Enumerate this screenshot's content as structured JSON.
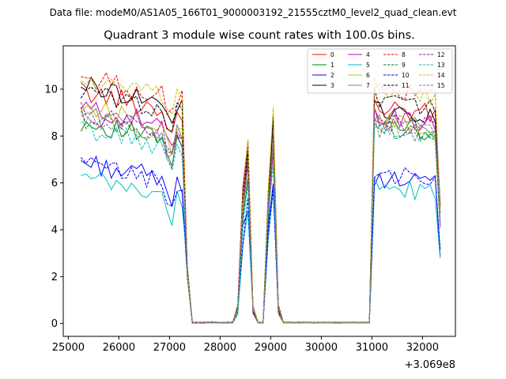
{
  "figure": {
    "suptitle": "Data file: modeM0/AS1A05_166T01_9000003192_21555cztM0_level2_quad_clean.evt",
    "title": "Quadrant 3 module wise count rates with 100.0s bins.",
    "x_offset_label": "+3.069e8"
  },
  "chart_data": {
    "type": "line",
    "title": "Quadrant 3 module wise count rates with 100.0s bins.",
    "xlabel": "",
    "ylabel": "",
    "x_offset": 306900000,
    "xlim": [
      24900,
      32650
    ],
    "ylim": [
      -0.55,
      11.85
    ],
    "xticks": [
      25000,
      26000,
      27000,
      28000,
      29000,
      30000,
      31000,
      32000
    ],
    "xtick_labels": [
      "25000",
      "26000",
      "27000",
      "28000",
      "29000",
      "30000",
      "31000",
      "32000"
    ],
    "yticks": [
      0,
      2,
      4,
      6,
      8,
      10
    ],
    "ytick_labels": [
      "0",
      "2",
      "4",
      "6",
      "8",
      "10"
    ],
    "grid": false,
    "legend_position": "top-right",
    "legend_columns": 4,
    "segments": [
      {
        "start": 25250,
        "end": 27250,
        "level": "high"
      },
      {
        "start": 27350,
        "end": 27350,
        "level": "drop"
      },
      {
        "start": 27450,
        "end": 28250,
        "level": "zero"
      },
      {
        "start": 28350,
        "end": 28350,
        "level": "ramp"
      },
      {
        "start": 28450,
        "end": 28450,
        "level": "ramp2"
      },
      {
        "start": 28550,
        "end": 28550,
        "level": "peak"
      },
      {
        "start": 28650,
        "end": 28650,
        "level": "ramp"
      },
      {
        "start": 28750,
        "end": 28850,
        "level": "zero"
      },
      {
        "start": 28950,
        "end": 28950,
        "level": "ramp2"
      },
      {
        "start": 29050,
        "end": 29050,
        "level": "peak2"
      },
      {
        "start": 29150,
        "end": 29150,
        "level": "ramp"
      },
      {
        "start": 29250,
        "end": 30950,
        "level": "zero"
      },
      {
        "start": 31050,
        "end": 32250,
        "level": "high"
      },
      {
        "start": 32350,
        "end": 32350,
        "level": "end"
      }
    ],
    "series": [
      {
        "name": "0",
        "color": "#ff0000",
        "style": "solid",
        "level": 9.9,
        "late": 9.3
      },
      {
        "name": "1",
        "color": "#008000",
        "style": "solid",
        "level": 8.6,
        "late": 8.6
      },
      {
        "name": "2",
        "color": "#0000ff",
        "style": "solid",
        "level": 6.9,
        "late": 6.3
      },
      {
        "name": "3",
        "color": "#000000",
        "style": "solid",
        "level": 10.2,
        "late": 9.2
      },
      {
        "name": "4",
        "color": "#bf00bf",
        "style": "solid",
        "level": 9.2,
        "late": 8.9
      },
      {
        "name": "5",
        "color": "#00bfbf",
        "style": "solid",
        "level": 6.2,
        "late": 5.9
      },
      {
        "name": "6",
        "color": "#bfbf00",
        "style": "solid",
        "level": 9.3,
        "late": 8.8
      },
      {
        "name": "7",
        "color": "#808080",
        "style": "solid",
        "level": 9.0,
        "late": 8.7
      },
      {
        "name": "8",
        "color": "#ff0000",
        "style": "dashed",
        "level": 10.5,
        "late": 10.0
      },
      {
        "name": "9",
        "color": "#008000",
        "style": "dashed",
        "level": 8.8,
        "late": 8.4
      },
      {
        "name": "10",
        "color": "#0000ff",
        "style": "dashed",
        "level": 6.8,
        "late": 6.4
      },
      {
        "name": "11",
        "color": "#000000",
        "style": "dashed",
        "level": 9.9,
        "late": 9.6
      },
      {
        "name": "12",
        "color": "#bf00bf",
        "style": "dashed",
        "level": 9.0,
        "late": 8.7
      },
      {
        "name": "13",
        "color": "#00bfbf",
        "style": "dashed",
        "level": 8.3,
        "late": 8.2
      },
      {
        "name": "14",
        "color": "#bfbf00",
        "style": "dashed",
        "level": 10.4,
        "late": 10.1
      },
      {
        "name": "15",
        "color": "#808080",
        "style": "dashed",
        "level": 8.7,
        "late": 8.4
      }
    ]
  }
}
